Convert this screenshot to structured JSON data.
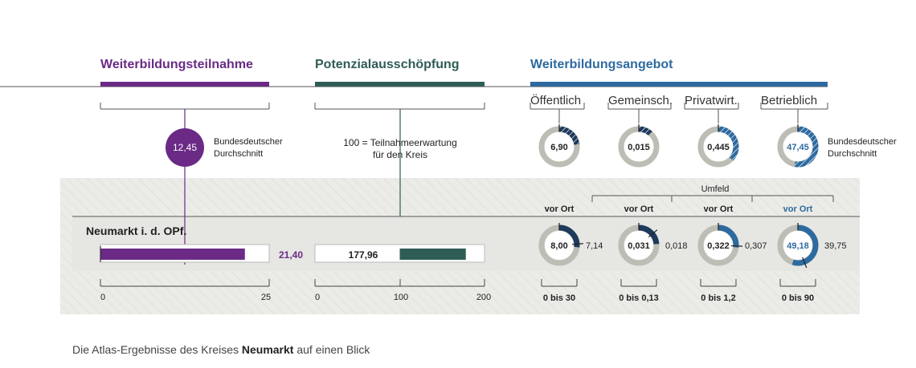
{
  "colors": {
    "purple": "#6a2a86",
    "green": "#2f5d55",
    "blue": "#2d6a9f",
    "navy": "#1e3a5c",
    "gray": "#bdbdb5",
    "band": "#ebebe7",
    "rule": "#555555"
  },
  "headers": {
    "participation": "Weiterbildungsteilnahme",
    "potential": "Potenzialausschöpfung",
    "offer": "Weiterbildungsangebot"
  },
  "offer_categories": [
    "Öffentlich",
    "Gemeinsch.",
    "Privatwirt.",
    "Betrieblich"
  ],
  "national": {
    "participation_value": "12,45",
    "label_line1": "Bundesdeutscher",
    "label_line2": "Durchschnitt",
    "potential_note_line1": "100 = Teilnahmeerwartung",
    "potential_note_line2": "für den Kreis",
    "donut_values": [
      "6,90",
      "0,015",
      "0,445",
      "47,45"
    ]
  },
  "umfeld_label": "Umfeld",
  "vor_ort_labels": [
    "vor Ort",
    "vor Ort",
    "vor Ort",
    "vor Ort"
  ],
  "region": {
    "name": "Neumarkt i. d. OPf.",
    "participation_value": "21,40",
    "potential_value": "177,96",
    "donut_values": [
      "8,00",
      "0,031",
      "0,322",
      "49,18"
    ],
    "umfeld_values": [
      "7,14",
      "0,018",
      "0,307",
      "39,75"
    ]
  },
  "axes": {
    "participation_ticks": [
      "0",
      "25"
    ],
    "potential_ticks": [
      "0",
      "100",
      "200"
    ],
    "donut_ranges": [
      "0 bis 30",
      "0 bis 0,13",
      "0 bis 1,2",
      "0 bis 90"
    ]
  },
  "caption": {
    "prefix": "Die Atlas-Ergebnisse des Kreises ",
    "bold": "Neumarkt",
    "suffix": " auf einen Blick"
  },
  "chart_data": [
    {
      "type": "bar",
      "title": "Weiterbildungsteilnahme",
      "categories": [
        "Neumarkt i. d. OPf."
      ],
      "values": [
        21.4
      ],
      "reference": 12.45,
      "xlim": [
        0,
        25
      ]
    },
    {
      "type": "bar",
      "title": "Potenzialausschöpfung",
      "categories": [
        "Neumarkt i. d. OPf."
      ],
      "values": [
        177.96
      ],
      "reference": 100,
      "xlim": [
        0,
        200
      ]
    },
    {
      "type": "pie",
      "title": "Weiterbildungsangebot",
      "categories": [
        "Öffentlich",
        "Gemeinsch.",
        "Privatwirt.",
        "Betrieblich"
      ],
      "series": [
        {
          "name": "Bundesdeutscher Durchschnitt",
          "values": [
            6.9,
            0.015,
            0.445,
            47.45
          ]
        },
        {
          "name": "vor Ort",
          "values": [
            8.0,
            0.031,
            0.322,
            49.18
          ]
        },
        {
          "name": "Umfeld",
          "values": [
            7.14,
            0.018,
            0.307,
            39.75
          ]
        }
      ],
      "ranges": [
        [
          0,
          30
        ],
        [
          0,
          0.13
        ],
        [
          0,
          1.2
        ],
        [
          0,
          90
        ]
      ]
    }
  ]
}
